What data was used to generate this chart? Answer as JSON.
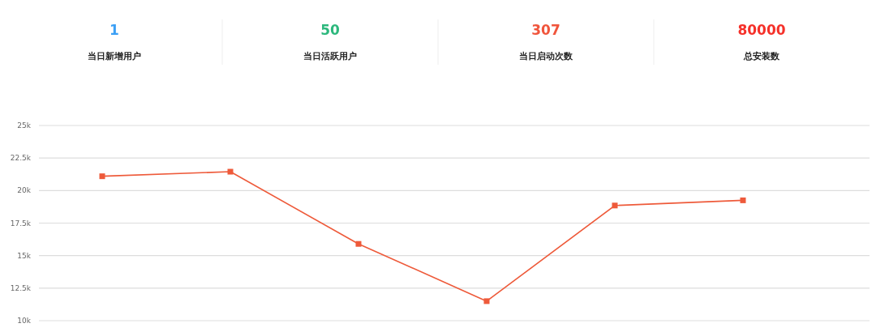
{
  "chart_data": [
    {
      "type": "other",
      "categories": [
        "当日新增用户",
        "当日活跃用户",
        "当日启动次数",
        "总安装数"
      ],
      "values": [
        1,
        50,
        307,
        80000
      ],
      "colors": [
        "#3a9ff5",
        "#2db87d",
        "#f0553c",
        "#f5312a"
      ],
      "data_labels": true
    },
    {
      "type": "line",
      "categories": [
        null,
        null,
        null,
        null,
        null,
        null
      ],
      "series": [
        {
          "color": "#ee5a3a",
          "values": [
            21100,
            21450,
            15900,
            11500,
            18850,
            19250
          ]
        }
      ],
      "ylim": [
        10000,
        25000
      ],
      "yticks": [
        {
          "value": 10000,
          "label": "10k"
        },
        {
          "value": 12500,
          "label": "12.5k"
        },
        {
          "value": 15000,
          "label": "15k"
        },
        {
          "value": 17500,
          "label": "17.5k"
        },
        {
          "value": 20000,
          "label": "20k"
        },
        {
          "value": 22500,
          "label": "22.5k"
        },
        {
          "value": 25000,
          "label": "25k"
        }
      ],
      "grid": "y",
      "marker": "square"
    }
  ]
}
